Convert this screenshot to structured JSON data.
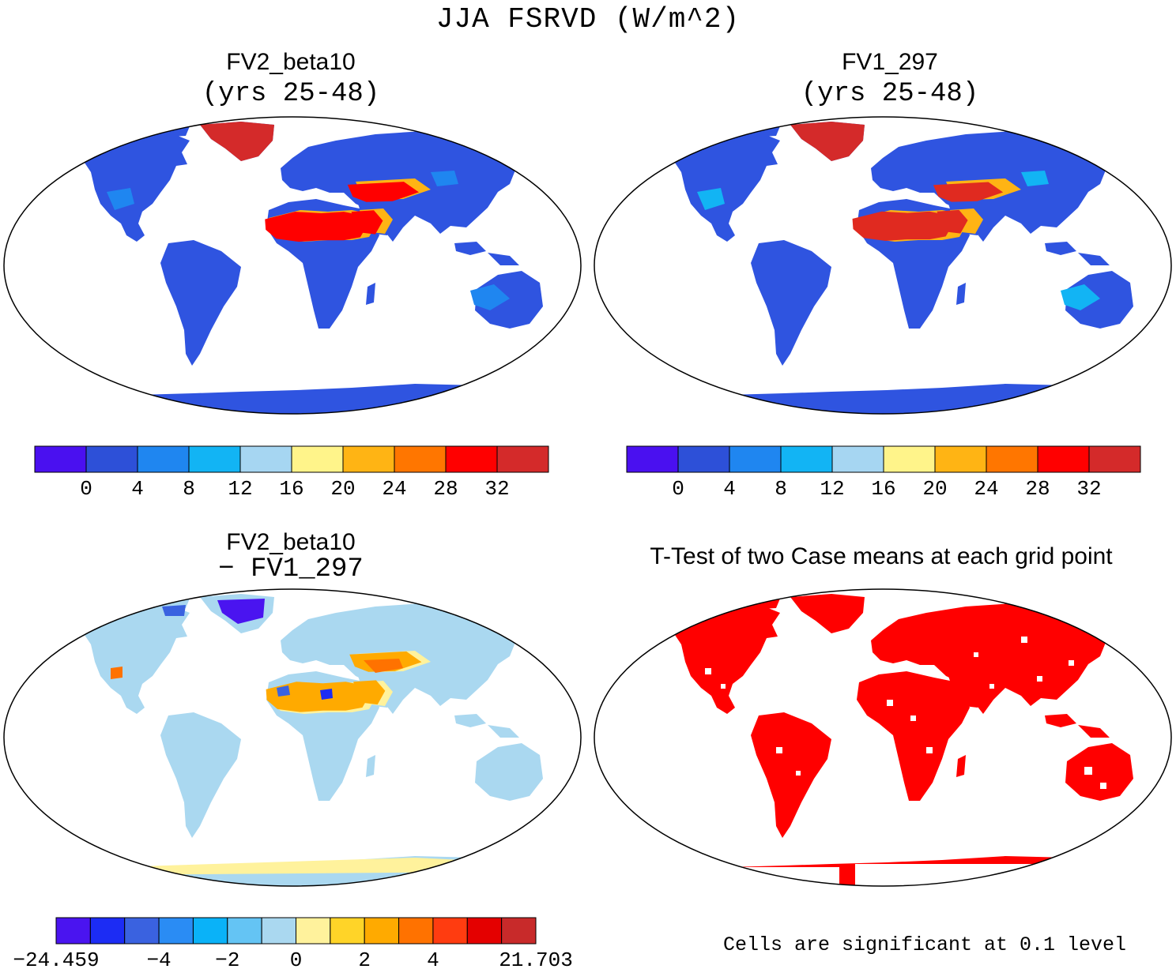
{
  "main_title": "JJA FSRVD (W/m^2)",
  "colors": {
    "land_mask": "#2f54e0",
    "ocean": "#ffffff",
    "significant": "#ff0000",
    "scale_main": [
      "#4a10f0",
      "#2d50d8",
      "#1f86f0",
      "#12b4f4",
      "#a6d6f2",
      "#fff48a",
      "#ffb414",
      "#ff7600",
      "#ff0000",
      "#d42a2a"
    ],
    "scale_diff": [
      "#4a14f0",
      "#1c2cf4",
      "#3a62e0",
      "#2a8cf4",
      "#0ab2f8",
      "#64c4f4",
      "#aad8f0",
      "#fff29c",
      "#ffd428",
      "#ffaa00",
      "#ff7200",
      "#ff3c10",
      "#e40000",
      "#c82a2a"
    ]
  },
  "panels": [
    {
      "title": "FV2_beta10",
      "subtitle": "(yrs 25-48)",
      "kind": "mean",
      "land_value": "0-4",
      "hot_region_value": "28-32+"
    },
    {
      "title": "FV1_297",
      "subtitle": "(yrs 25-48)",
      "kind": "mean",
      "land_value": "0-4",
      "hot_region_value": "24-32+"
    },
    {
      "title": "FV2_beta10",
      "subtitle": "− FV1_297",
      "kind": "difference"
    },
    {
      "title": "T-Test of two Case means at each grid point",
      "subtitle": "",
      "kind": "significance",
      "note": "Cells are significant at 0.1 level"
    }
  ],
  "colorbar_main": {
    "labels": [
      "0",
      "4",
      "8",
      "12",
      "16",
      "20",
      "24",
      "28",
      "32"
    ]
  },
  "colorbar_diff": {
    "labels": [
      "−24.459",
      "−4",
      "−2",
      "0",
      "2",
      "4",
      "21.703"
    ]
  }
}
